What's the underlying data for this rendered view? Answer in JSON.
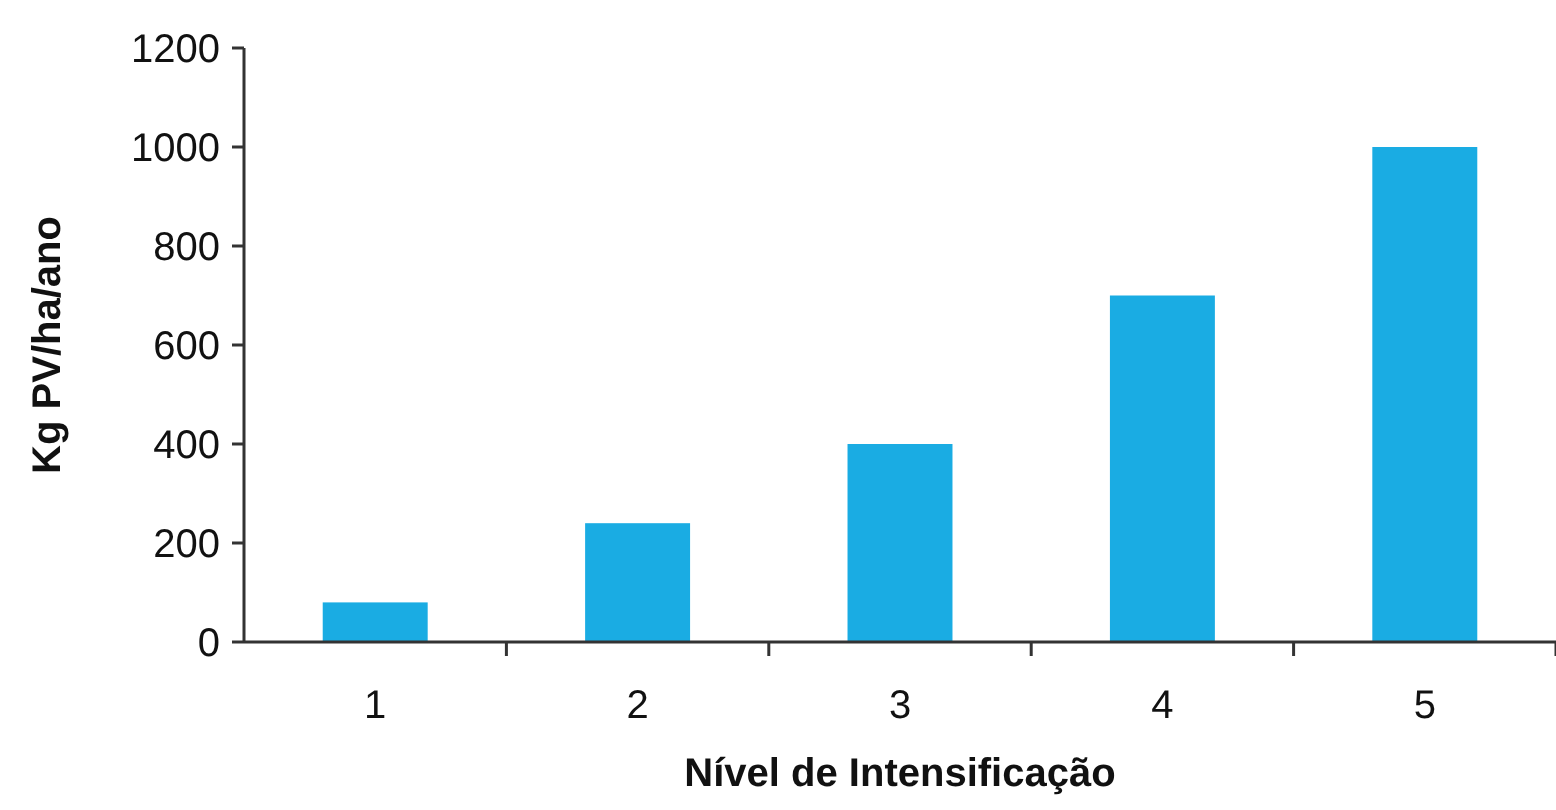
{
  "chart_data": {
    "type": "bar",
    "xlabel": "Nível de Intensificação",
    "ylabel": "Kg PV/ha/ano",
    "categories": [
      "1",
      "2",
      "3",
      "4",
      "5"
    ],
    "values": [
      80,
      240,
      400,
      700,
      1000
    ],
    "color": "#1aace3",
    "ylim": [
      0,
      1200
    ],
    "yticks": [
      0,
      200,
      400,
      600,
      800,
      1000,
      1200
    ],
    "grid": false
  }
}
